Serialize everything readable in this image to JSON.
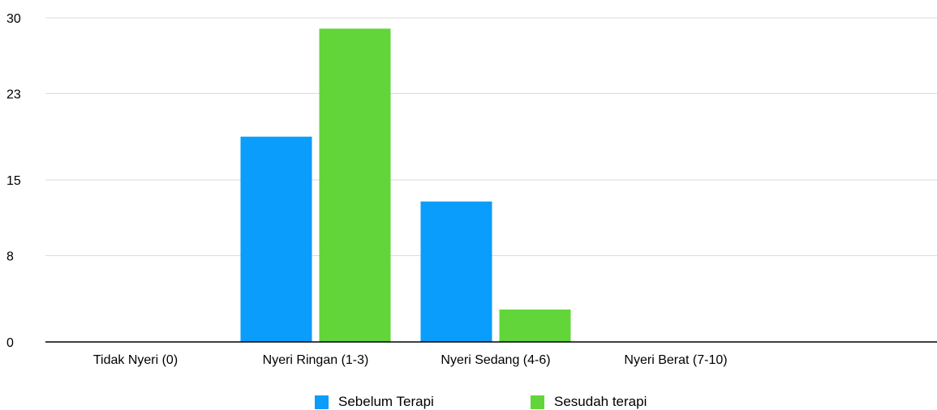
{
  "chart_data": {
    "type": "bar",
    "categories": [
      "Tidak Nyeri (0)",
      "Nyeri Ringan (1-3)",
      "Nyeri Sedang (4-6)",
      "Nyeri Berat (7-10)"
    ],
    "series": [
      {
        "name": "Sebelum Terapi",
        "values": [
          0,
          19,
          13,
          0
        ],
        "color": "#0a9dfb"
      },
      {
        "name": "Sesudah terapi",
        "values": [
          0,
          29,
          3,
          0
        ],
        "color": "#62d53a"
      }
    ],
    "yticks": [
      0,
      8,
      15,
      23,
      30
    ],
    "ylim": [
      0,
      30
    ],
    "grid": true,
    "legend_position": "bottom"
  }
}
